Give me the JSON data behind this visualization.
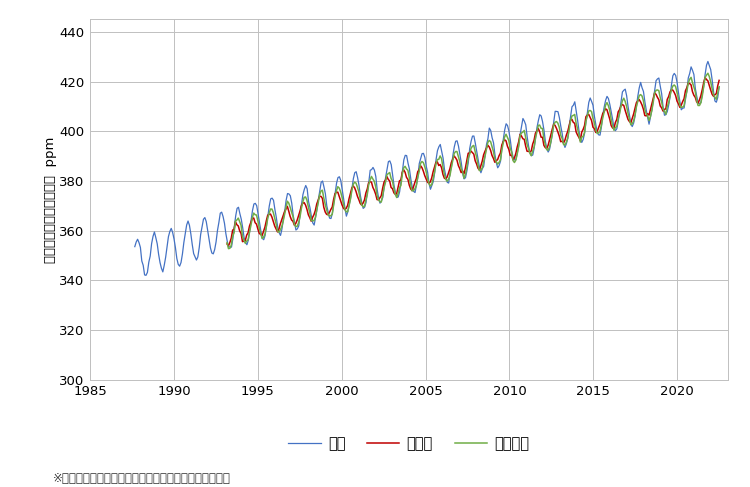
{
  "ylabel": "大気中の二酸化炭素濃度  ppm",
  "xlim": [
    1985,
    2023
  ],
  "ylim": [
    300,
    445
  ],
  "yticks": [
    300,
    320,
    340,
    360,
    380,
    400,
    420,
    440
  ],
  "xticks": [
    1985,
    1990,
    1995,
    2000,
    2005,
    2010,
    2015,
    2020
  ],
  "legend_labels": [
    "綿里",
    "南鳥島",
    "与那国島"
  ],
  "colors": {
    "ryori": "#4472C4",
    "minami": "#C00000",
    "yonaguni": "#70AD47"
  },
  "source_text": "※出典　二酸化炭素濃度の経年変化（気象庁）から作成",
  "background_color": "#FFFFFF",
  "grid_color": "#C0C0C0",
  "ryori_start_year": 1987.67,
  "ryori_end_year": 2022.5,
  "ryori_base": 348.5,
  "ryori_trend": 2.08,
  "ryori_amp": 8.0,
  "ryori_phase": 0.42,
  "minami_start_year": 1993.17,
  "minami_end_year": 2022.5,
  "minami_base": 357.8,
  "minami_trend": 2.08,
  "minami_amp": 4.0,
  "minami_phase": 0.55,
  "yonaguni_start_year": 1993.17,
  "yonaguni_end_year": 2022.5,
  "yonaguni_base": 358.2,
  "yonaguni_trend": 2.08,
  "yonaguni_amp": 5.5,
  "yonaguni_phase": 0.45
}
